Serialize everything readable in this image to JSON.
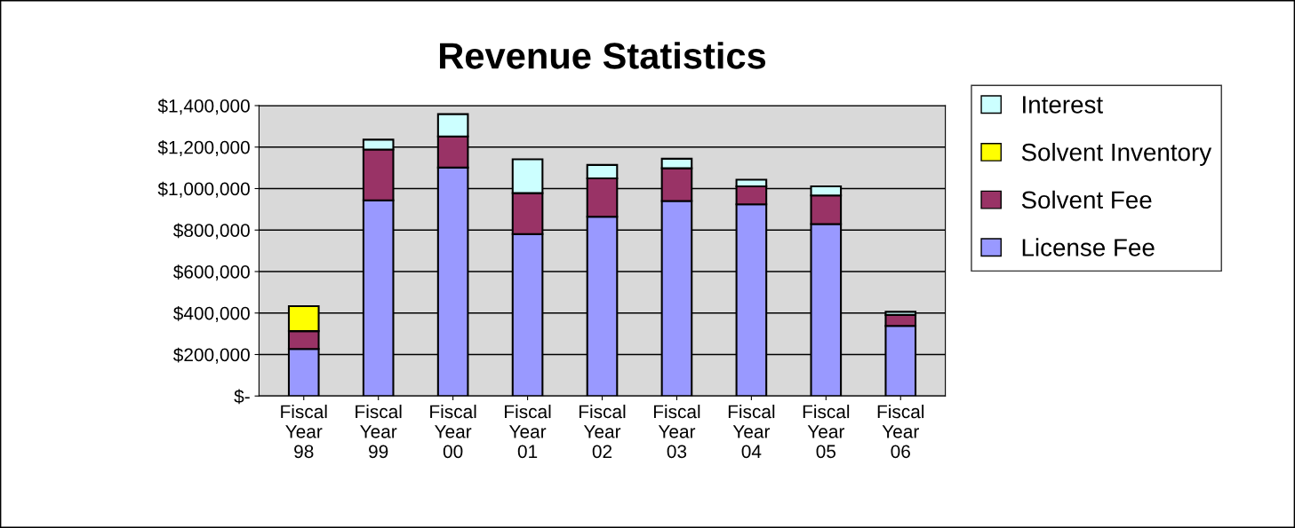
{
  "chart_data": {
    "type": "bar",
    "title": "Revenue Statistics",
    "stacked": true,
    "grid": "y",
    "legend": "right",
    "categories": [
      "Fiscal\nYear\n98",
      "Fiscal\nYear\n99",
      "Fiscal\nYear\n00",
      "Fiscal\nYear\n01",
      "Fiscal\nYear\n02",
      "Fiscal\nYear\n03",
      "Fiscal\nYear\n04",
      "Fiscal\nYear\n05",
      "Fiscal\nYear\n06"
    ],
    "ylim": [
      0,
      1400000
    ],
    "yticks": [
      {
        "value": 0,
        "label": "$-"
      },
      {
        "value": 200000,
        "label": "$200,000"
      },
      {
        "value": 400000,
        "label": "$400,000"
      },
      {
        "value": 600000,
        "label": "$600,000"
      },
      {
        "value": 800000,
        "label": "$800,000"
      },
      {
        "value": 1000000,
        "label": "$1,000,000"
      },
      {
        "value": 1200000,
        "label": "$1,200,000"
      },
      {
        "value": 1400000,
        "label": "$1,400,000"
      }
    ],
    "series": [
      {
        "name": "License Fee",
        "color": "#9999ff",
        "values": [
          227000,
          943000,
          1101000,
          781000,
          864000,
          940000,
          924000,
          829000,
          338000
        ]
      },
      {
        "name": "Solvent Fee",
        "color": "#993366",
        "values": [
          86000,
          245000,
          150000,
          197000,
          185000,
          158000,
          87000,
          138000,
          53000
        ]
      },
      {
        "name": "Solvent Inventory",
        "color": "#ffff00",
        "values": [
          120000,
          null,
          null,
          null,
          null,
          null,
          null,
          null,
          null
        ]
      },
      {
        "name": "Interest",
        "color": "#ccffff",
        "values": [
          null,
          48000,
          108000,
          163000,
          65000,
          46000,
          32000,
          44000,
          15000
        ]
      }
    ]
  }
}
